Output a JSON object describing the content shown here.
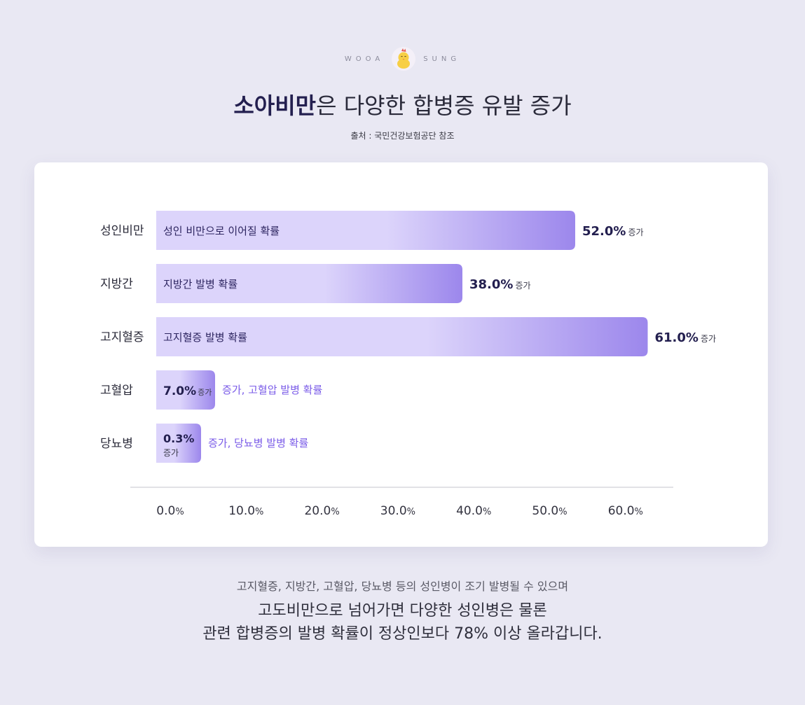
{
  "brand": {
    "left": "WOOA",
    "right": "SUNG",
    "logo_icon": "chick-mascot-icon"
  },
  "title": {
    "strong": "소아비만",
    "rest": "은 다양한 합병증 유발 증가"
  },
  "source": "출처 : 국민건강보험공단 참조",
  "colors": {
    "background": "#e9e8f3",
    "bar_light": "#dcd4fb",
    "bar_dark": "#9c87ec",
    "accent_text": "#7b5ce8",
    "value_text": "#231f4f"
  },
  "chart_data": {
    "type": "bar",
    "orientation": "horizontal",
    "categories": [
      "성인비만",
      "지방간",
      "고지혈증",
      "고혈압",
      "당뇨병"
    ],
    "values": [
      52.0,
      38.0,
      61.0,
      7.0,
      0.3
    ],
    "value_labels": [
      "52.0%",
      "38.0%",
      "61.0%",
      "7.0%",
      "0.3%"
    ],
    "value_suffix": "증가",
    "bar_labels": [
      "성인 비만으로 이어질 확률",
      "지방간 발병 확률",
      "고지혈증 발병 확률",
      "고혈압 발병 확률",
      "당뇨병 발병 확률"
    ],
    "outside_prefix": "증가, ",
    "x_ticks": [
      "0.0",
      "10.0",
      "20.0",
      "30.0",
      "40.0",
      "50.0",
      "60.0"
    ],
    "tick_unit": "%",
    "xlim": [
      0,
      60
    ],
    "grid": false,
    "legend": "none"
  },
  "footer": {
    "line1": "고지혈증, 지방간, 고혈압, 당뇨병 등의 성인병이 조기 발병될 수 있으며",
    "line2": "고도비만으로 넘어가면 다양한 성인병은 물론",
    "line3": "관련 합병증의 발병 확률이 정상인보다 78% 이상 올라갑니다."
  }
}
